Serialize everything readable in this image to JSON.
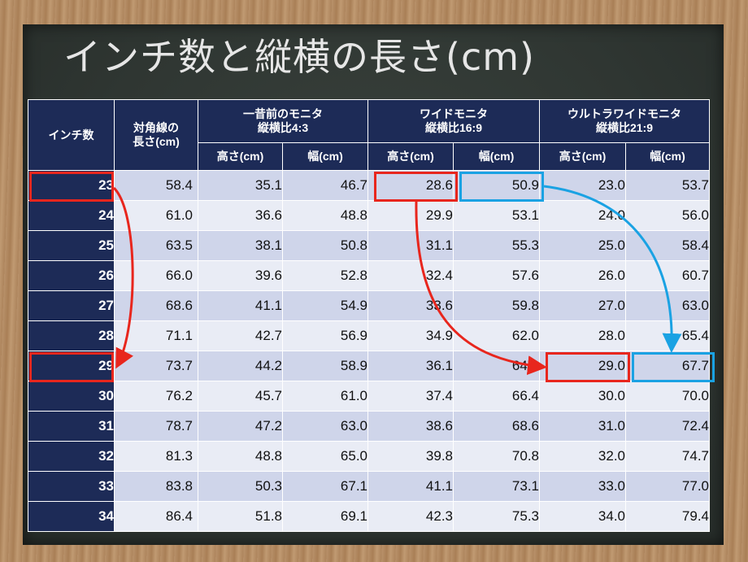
{
  "title": "インチ数と縦横の長さ(cm)",
  "table": {
    "headers": {
      "inch": "インチ数",
      "diagonal_line1": "対角線の",
      "diagonal_line2": "長さ(cm)",
      "groups": [
        {
          "name": "一昔前のモニタ",
          "ratio": "縦横比4:3"
        },
        {
          "name": "ワイドモニタ",
          "ratio": "縦横比16:9"
        },
        {
          "name": "ウルトラワイドモニタ",
          "ratio": "縦横比21:9"
        }
      ],
      "height": "高さ(cm)",
      "width": "幅(cm)"
    },
    "rows": [
      {
        "inch": "23",
        "diag": "58.4",
        "h43": "35.1",
        "w43": "46.7",
        "h169": "28.6",
        "w169": "50.9",
        "h219": "23.0",
        "w219": "53.7"
      },
      {
        "inch": "24",
        "diag": "61.0",
        "h43": "36.6",
        "w43": "48.8",
        "h169": "29.9",
        "w169": "53.1",
        "h219": "24.0",
        "w219": "56.0"
      },
      {
        "inch": "25",
        "diag": "63.5",
        "h43": "38.1",
        "w43": "50.8",
        "h169": "31.1",
        "w169": "55.3",
        "h219": "25.0",
        "w219": "58.4"
      },
      {
        "inch": "26",
        "diag": "66.0",
        "h43": "39.6",
        "w43": "52.8",
        "h169": "32.4",
        "w169": "57.6",
        "h219": "26.0",
        "w219": "60.7"
      },
      {
        "inch": "27",
        "diag": "68.6",
        "h43": "41.1",
        "w43": "54.9",
        "h169": "33.6",
        "w169": "59.8",
        "h219": "27.0",
        "w219": "63.0"
      },
      {
        "inch": "28",
        "diag": "71.1",
        "h43": "42.7",
        "w43": "56.9",
        "h169": "34.9",
        "w169": "62.0",
        "h219": "28.0",
        "w219": "65.4"
      },
      {
        "inch": "29",
        "diag": "73.7",
        "h43": "44.2",
        "w43": "58.9",
        "h169": "36.1",
        "w169": "64.2",
        "h219": "29.0",
        "w219": "67.7"
      },
      {
        "inch": "30",
        "diag": "76.2",
        "h43": "45.7",
        "w43": "61.0",
        "h169": "37.4",
        "w169": "66.4",
        "h219": "30.0",
        "w219": "70.0"
      },
      {
        "inch": "31",
        "diag": "78.7",
        "h43": "47.2",
        "w43": "63.0",
        "h169": "38.6",
        "w169": "68.6",
        "h219": "31.0",
        "w219": "72.4"
      },
      {
        "inch": "32",
        "diag": "81.3",
        "h43": "48.8",
        "w43": "65.0",
        "h169": "39.8",
        "w169": "70.8",
        "h219": "32.0",
        "w219": "74.7"
      },
      {
        "inch": "33",
        "diag": "83.8",
        "h43": "50.3",
        "w43": "67.1",
        "h169": "41.1",
        "w169": "73.1",
        "h219": "33.0",
        "w219": "77.0"
      },
      {
        "inch": "34",
        "diag": "86.4",
        "h43": "51.8",
        "w43": "69.1",
        "h169": "42.3",
        "w169": "75.3",
        "h219": "34.0",
        "w219": "79.4"
      }
    ]
  },
  "highlight_colors": {
    "red": "#e8261d",
    "blue": "#1aa2e3"
  }
}
